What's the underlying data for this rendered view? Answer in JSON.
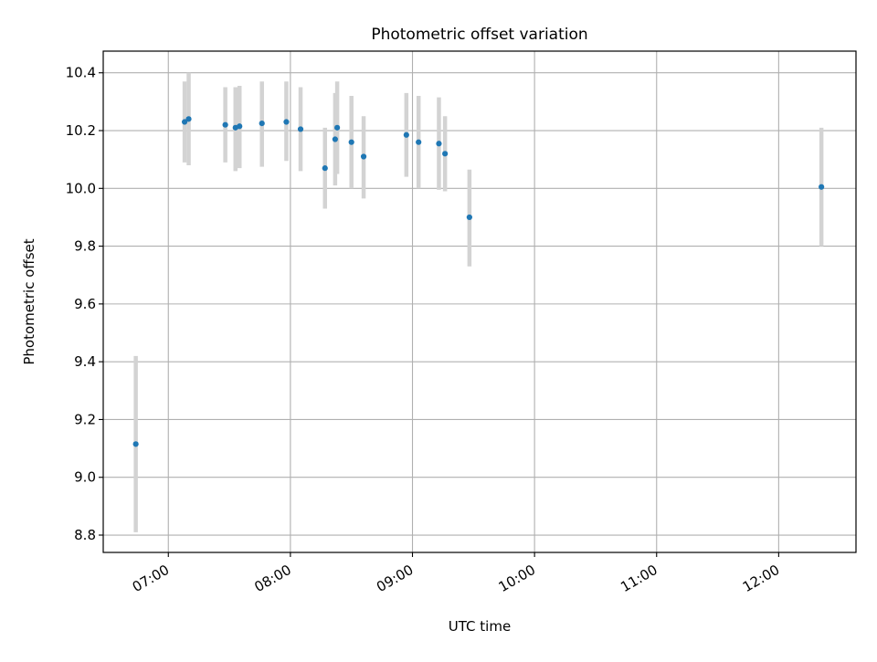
{
  "chart_data": {
    "type": "scatter",
    "title": "Photometric offset variation",
    "xlabel": "UTC time",
    "ylabel": "Photometric offset",
    "x_axis": {
      "kind": "time",
      "unit": "UTC",
      "range": [
        "06:28",
        "12:38"
      ],
      "ticks": [
        "07:00",
        "08:00",
        "09:00",
        "10:00",
        "11:00",
        "12:00"
      ],
      "tick_labels": [
        "07:00",
        "08:00",
        "09:00",
        "10:00",
        "11:00",
        "12:00"
      ],
      "tick_label_rotation": "slanted"
    },
    "y_axis": {
      "range": [
        8.74,
        10.475
      ],
      "ticks": [
        8.8,
        9.0,
        9.2,
        9.4,
        9.6,
        9.8,
        10.0,
        10.2,
        10.4
      ],
      "tick_labels": [
        "8.8",
        "9.0",
        "9.2",
        "9.4",
        "9.6",
        "9.8",
        "10.0",
        "10.2",
        "10.4"
      ]
    },
    "grid": true,
    "series": [
      {
        "marker_color": "#1f77b4",
        "errorbar_color": "#d3d3d3",
        "points": [
          {
            "x": "06:44",
            "y": 9.115,
            "ylow": 8.81,
            "yhigh": 9.42
          },
          {
            "x": "07:08",
            "y": 10.23,
            "ylow": 10.09,
            "yhigh": 10.37
          },
          {
            "x": "07:10",
            "y": 10.24,
            "ylow": 10.08,
            "yhigh": 10.4
          },
          {
            "x": "07:28",
            "y": 10.22,
            "ylow": 10.09,
            "yhigh": 10.35
          },
          {
            "x": "07:33",
            "y": 10.21,
            "ylow": 10.06,
            "yhigh": 10.35
          },
          {
            "x": "07:35",
            "y": 10.215,
            "ylow": 10.07,
            "yhigh": 10.355
          },
          {
            "x": "07:46",
            "y": 10.225,
            "ylow": 10.075,
            "yhigh": 10.37
          },
          {
            "x": "07:58",
            "y": 10.23,
            "ylow": 10.095,
            "yhigh": 10.37
          },
          {
            "x": "08:05",
            "y": 10.205,
            "ylow": 10.06,
            "yhigh": 10.35
          },
          {
            "x": "08:17",
            "y": 10.07,
            "ylow": 9.93,
            "yhigh": 10.21
          },
          {
            "x": "08:22",
            "y": 10.17,
            "ylow": 10.01,
            "yhigh": 10.33
          },
          {
            "x": "08:23",
            "y": 10.21,
            "ylow": 10.05,
            "yhigh": 10.37
          },
          {
            "x": "08:30",
            "y": 10.16,
            "ylow": 10.0,
            "yhigh": 10.32
          },
          {
            "x": "08:36",
            "y": 10.11,
            "ylow": 9.965,
            "yhigh": 10.25
          },
          {
            "x": "08:57",
            "y": 10.185,
            "ylow": 10.04,
            "yhigh": 10.33
          },
          {
            "x": "09:03",
            "y": 10.16,
            "ylow": 10.0,
            "yhigh": 10.32
          },
          {
            "x": "09:13",
            "y": 10.155,
            "ylow": 9.995,
            "yhigh": 10.315
          },
          {
            "x": "09:16",
            "y": 10.12,
            "ylow": 9.99,
            "yhigh": 10.25
          },
          {
            "x": "09:28",
            "y": 9.9,
            "ylow": 9.73,
            "yhigh": 10.065
          },
          {
            "x": "12:21",
            "y": 10.005,
            "ylow": 9.8,
            "yhigh": 10.21
          }
        ]
      }
    ]
  }
}
